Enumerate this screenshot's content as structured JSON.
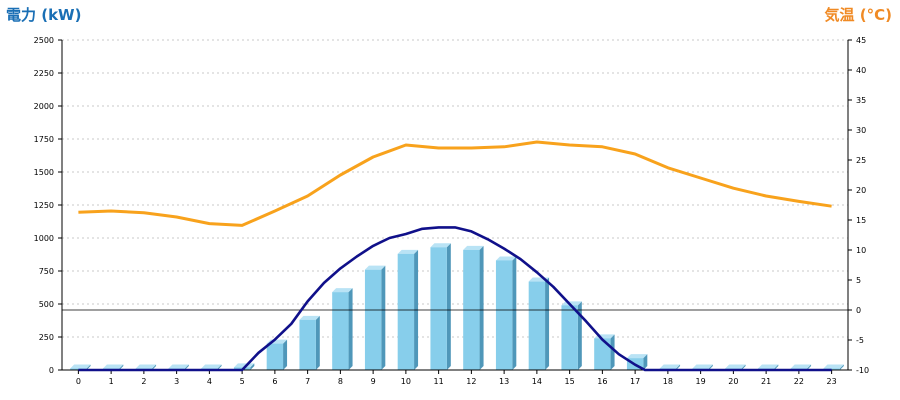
{
  "chart_data": {
    "type": "bar",
    "title_left": "電力 (kW)",
    "title_right": "気温 (°C)",
    "categories": [
      "0",
      "1",
      "2",
      "3",
      "4",
      "5",
      "6",
      "7",
      "8",
      "9",
      "10",
      "11",
      "12",
      "13",
      "14",
      "15",
      "16",
      "17",
      "18",
      "19",
      "20",
      "21",
      "22",
      "23"
    ],
    "ylim_left": [
      0,
      2500
    ],
    "yticks_left": [
      0,
      250,
      500,
      750,
      1000,
      1250,
      1500,
      1750,
      2000,
      2250,
      2500
    ],
    "ylim_right": [
      -10,
      45
    ],
    "yticks_right": [
      -10,
      -5,
      0,
      5,
      10,
      15,
      20,
      25,
      30,
      35,
      40,
      45
    ],
    "grid": true,
    "colors": {
      "bar": "#87ceeb",
      "power_line": "#10108a",
      "temperature_line": "#f8a21c",
      "left_title": "#1a6fb5",
      "right_title": "#f08a24"
    },
    "series": [
      {
        "kind": "bar",
        "axis": "left",
        "values": [
          0,
          0,
          0,
          0,
          0,
          20,
          200,
          380,
          590,
          760,
          880,
          930,
          910,
          830,
          670,
          490,
          240,
          90,
          0,
          0,
          0,
          0,
          0,
          0
        ]
      },
      {
        "kind": "line",
        "axis": "left",
        "x": [
          0,
          1,
          2,
          3,
          4,
          5,
          5.5,
          6,
          6.5,
          7,
          7.5,
          8,
          8.5,
          9,
          9.5,
          10,
          10.5,
          11,
          11.5,
          12,
          12.5,
          13,
          13.5,
          14,
          14.5,
          15,
          15.5,
          16,
          16.5,
          17,
          17.3,
          18,
          19,
          20,
          21,
          22,
          23
        ],
        "values": [
          0,
          0,
          0,
          0,
          0,
          0,
          130,
          230,
          350,
          520,
          660,
          770,
          860,
          940,
          1000,
          1030,
          1070,
          1080,
          1080,
          1050,
          990,
          920,
          840,
          740,
          630,
          500,
          370,
          230,
          120,
          40,
          0,
          0,
          0,
          0,
          0,
          0,
          0
        ]
      },
      {
        "kind": "line",
        "axis": "right",
        "values": [
          16.3,
          16.5,
          16.2,
          15.5,
          14.4,
          14.1,
          16.5,
          19.0,
          22.5,
          25.5,
          27.5,
          27.0,
          27.0,
          27.2,
          28.0,
          27.5,
          27.2,
          26.0,
          23.7,
          22.0,
          20.3,
          19.0,
          18.1,
          17.3
        ]
      }
    ]
  }
}
